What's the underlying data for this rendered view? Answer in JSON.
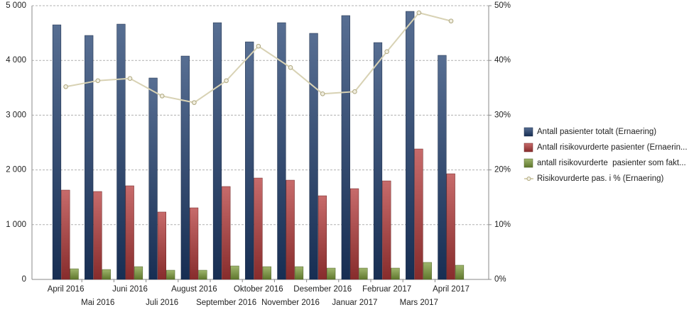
{
  "chart_data": {
    "type": "bar",
    "categories": [
      "April 2016",
      "Mai 2016",
      "Juni 2016",
      "Juli 2016",
      "August 2016",
      "September 2016",
      "Oktober 2016",
      "November 2016",
      "Desember 2016",
      "Januar 2017",
      "Februar 2017",
      "Mars 2017",
      "April 2017"
    ],
    "series": [
      {
        "name": "Antall pasienter totalt (Ernaering)",
        "type": "bar",
        "color": "#1f3d6e",
        "values": [
          4650,
          4456,
          4663,
          3679,
          4080,
          4689,
          4339,
          4689,
          4495,
          4819,
          4326,
          4896,
          4093
        ]
      },
      {
        "name": "Antall risikovurderte pasienter (Ernaerin...",
        "type": "bar",
        "color": "#b43a3a",
        "values": [
          1632,
          1606,
          1710,
          1231,
          1308,
          1697,
          1852,
          1813,
          1528,
          1658,
          1800,
          2383,
          1930
        ]
      },
      {
        "name": "antall risikovurderte  pasienter som fakt...",
        "type": "bar",
        "color": "#7f9e3c",
        "values": [
          194,
          181,
          233,
          168,
          168,
          246,
          233,
          233,
          207,
          207,
          207,
          311,
          259
        ]
      },
      {
        "name": "Risikovurderte pas. i % (Ernaering)",
        "type": "line",
        "axis": "y2",
        "color": "#d8d2b4",
        "values": [
          35.2,
          36.3,
          36.7,
          33.5,
          32.3,
          36.3,
          42.6,
          38.7,
          33.9,
          34.3,
          41.6,
          48.7,
          47.2
        ]
      }
    ],
    "ylim": [
      0,
      5000
    ],
    "yticks": [
      {
        "value": 0,
        "label": "0"
      },
      {
        "value": 1000,
        "label": "1 000"
      },
      {
        "value": 2000,
        "label": "2 000"
      },
      {
        "value": 3000,
        "label": "3 000"
      },
      {
        "value": 4000,
        "label": "4 000"
      },
      {
        "value": 5000,
        "label": "5 000"
      }
    ],
    "y2lim": [
      0,
      50
    ],
    "y2ticks": [
      {
        "value": 0,
        "label": "0%"
      },
      {
        "value": 10,
        "label": "10%"
      },
      {
        "value": 20,
        "label": "20%"
      },
      {
        "value": 30,
        "label": "30%"
      },
      {
        "value": 40,
        "label": "40%"
      },
      {
        "value": 50,
        "label": "50%"
      }
    ],
    "grid": true,
    "legend": "right"
  }
}
